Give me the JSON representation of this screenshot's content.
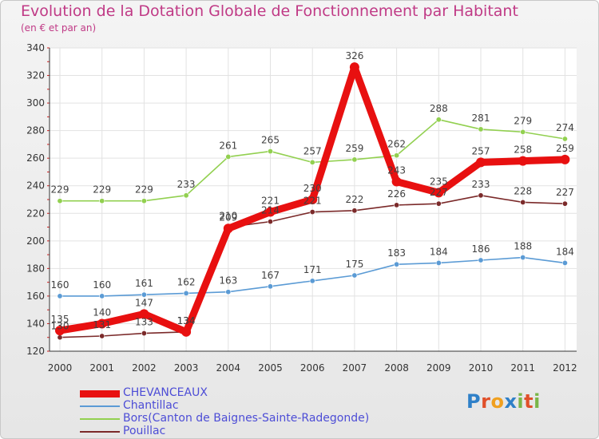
{
  "title": "Evolution de la Dotation Globale de Fonctionnement par Habitant",
  "subtitle": "(en € et par an)",
  "logo": "Proxiti",
  "colors": {
    "CHEVANCEAUX": "#e81010",
    "Chantillac": "#5b9bd5",
    "Bors": "#92d050",
    "Pouillac": "#7b2a2a",
    "title": "#c03a86",
    "legend_text": "#4d4dd6"
  },
  "chart_data": {
    "type": "line",
    "title": "Evolution de la Dotation Globale de Fonctionnement par Habitant",
    "subtitle": "(en € et par an)",
    "xlabel": "",
    "ylabel": "",
    "x": [
      "2000",
      "2001",
      "2002",
      "2003",
      "2004",
      "2005",
      "2006",
      "2007",
      "2008",
      "2009",
      "2010",
      "2011",
      "2012"
    ],
    "ylim": [
      120,
      340
    ],
    "yticks": [
      120,
      140,
      160,
      180,
      200,
      220,
      240,
      260,
      280,
      300,
      320,
      340
    ],
    "grid": true,
    "legend_position": "bottom",
    "series": [
      {
        "name": "CHEVANCEAUX",
        "key": "CHEVANCEAUX",
        "values": [
          135,
          140,
          147,
          134,
          209,
          221,
          230,
          326,
          243,
          235,
          257,
          258,
          259
        ]
      },
      {
        "name": "Chantillac",
        "key": "Chantillac",
        "values": [
          160,
          160,
          161,
          162,
          163,
          167,
          171,
          175,
          183,
          184,
          186,
          188,
          184
        ]
      },
      {
        "name": "Bors(Canton de Baignes-Sainte-Radegonde)",
        "key": "Bors",
        "values": [
          229,
          229,
          229,
          233,
          261,
          265,
          257,
          259,
          262,
          288,
          281,
          279,
          274
        ]
      },
      {
        "name": "Pouillac",
        "key": "Pouillac",
        "values": [
          130,
          131,
          133,
          134,
          210,
          214,
          221,
          222,
          226,
          227,
          233,
          228,
          227
        ]
      }
    ]
  }
}
